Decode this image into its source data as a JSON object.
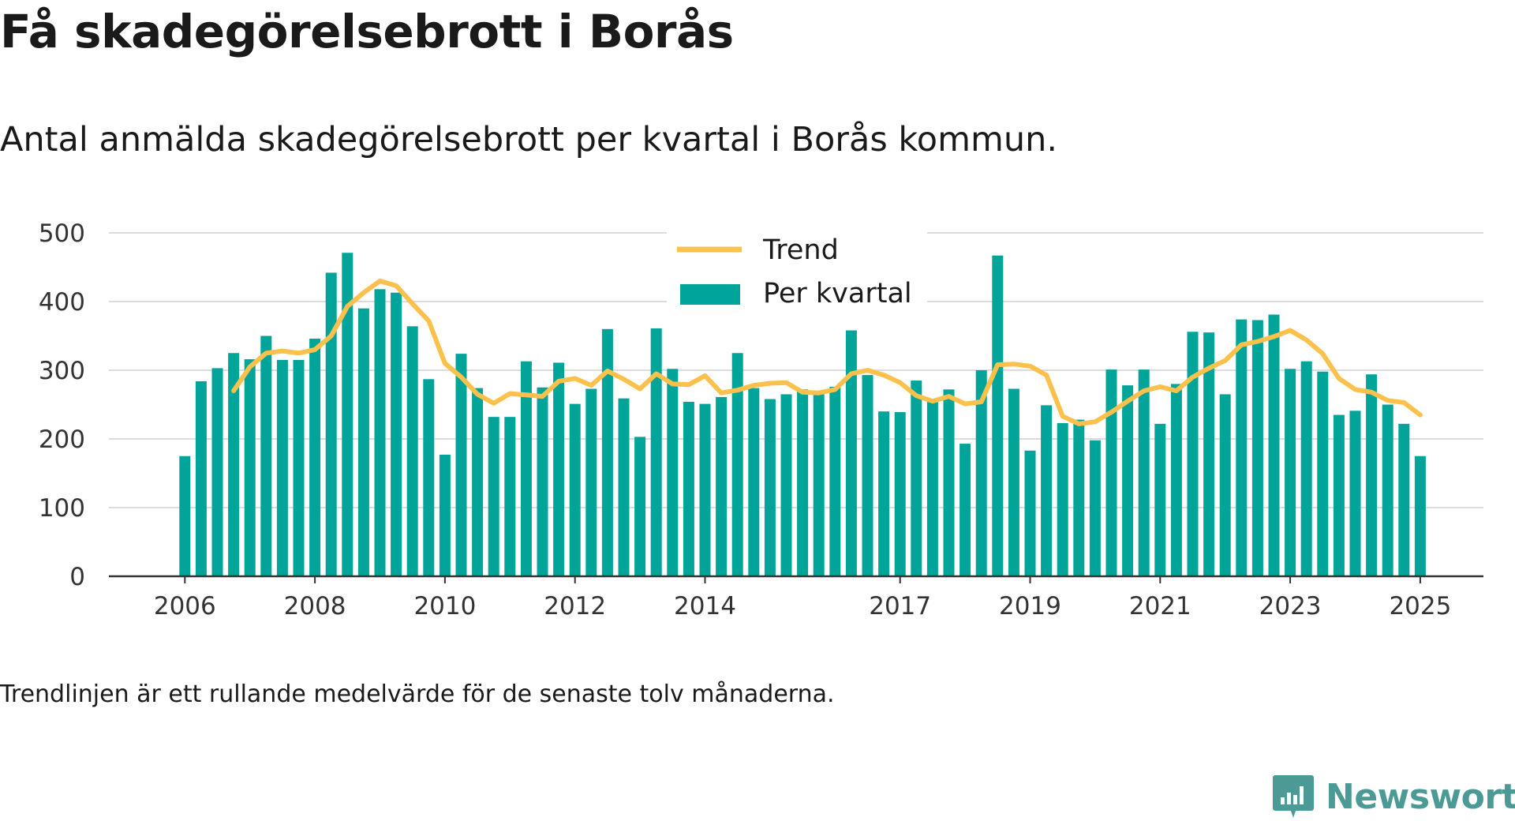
{
  "header": {
    "title": "Få skadegörelsebrott i Borås",
    "subtitle": "Antal anmälda skadegörelsebrott per kvartal i Borås kommun."
  },
  "footer": {
    "note": "Trendlinjen är ett rullande medelvärde för de senaste tolv månaderna.",
    "brand": "Newsworthy"
  },
  "colors": {
    "bar": "#00a499",
    "trend": "#fcc14d",
    "grid": "#dcdcdc",
    "axis": "#333333",
    "brand": "#4c9a95"
  },
  "chart_data": {
    "type": "bar",
    "title": "Få skadegörelsebrott i Borås",
    "ylim": [
      0,
      500
    ],
    "yticks": [
      0,
      100,
      200,
      300,
      400,
      500
    ],
    "xticks": [
      "2006",
      "2008",
      "2010",
      "2012",
      "2014",
      "2017",
      "2019",
      "2021",
      "2023",
      "2025"
    ],
    "grid": true,
    "legend_position": "top-center",
    "x_start": "2006 Q1",
    "series": [
      {
        "name": "Per kvartal",
        "kind": "bar",
        "values": [
          175,
          284,
          303,
          325,
          316,
          350,
          315,
          315,
          346,
          442,
          471,
          390,
          418,
          413,
          364,
          287,
          177,
          324,
          274,
          232,
          232,
          313,
          275,
          311,
          251,
          273,
          360,
          259,
          203,
          361,
          302,
          254,
          251,
          261,
          325,
          274,
          258,
          265,
          272,
          268,
          276,
          358,
          293,
          240,
          239,
          285,
          256,
          272,
          193,
          300,
          467,
          273,
          183,
          249,
          223,
          228,
          198,
          301,
          278,
          301,
          222,
          280,
          356,
          355,
          265,
          374,
          373,
          381,
          302,
          313,
          298,
          235,
          241,
          294,
          250,
          222,
          175
        ]
      },
      {
        "name": "Trend",
        "kind": "line",
        "start_quarter_index": 3,
        "values": [
          270,
          305,
          325,
          328,
          325,
          330,
          350,
          393,
          413,
          430,
          423,
          397,
          372,
          310,
          290,
          265,
          252,
          266,
          264,
          262,
          284,
          288,
          278,
          299,
          287,
          273,
          295,
          280,
          279,
          292,
          267,
          271,
          278,
          281,
          282,
          268,
          267,
          272,
          295,
          300,
          293,
          282,
          263,
          255,
          262,
          251,
          254,
          308,
          309,
          306,
          293,
          233,
          222,
          225,
          239,
          255,
          270,
          276,
          270,
          290,
          303,
          314,
          337,
          342,
          349,
          358,
          344,
          324,
          288,
          272,
          268,
          256,
          253,
          235
        ]
      }
    ]
  }
}
